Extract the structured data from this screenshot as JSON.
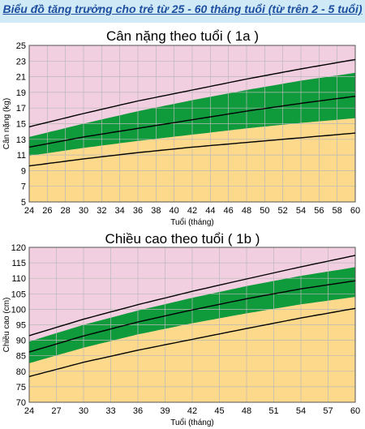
{
  "header": {
    "title": "Biểu đồ tăng trưởng cho trẻ từ 25 - 60 tháng tuổi (từ trên 2 - 5 tuổi)"
  },
  "colors": {
    "pink": "#f2cfe0",
    "green": "#0f9a3c",
    "yellow": "#fdd98b",
    "grid": "#b8b8b8",
    "line": "#000000"
  },
  "chart_data": [
    {
      "type": "line",
      "title": "Cân nặng theo tuổi ( 1a )",
      "xlabel": "Tuổi (tháng)",
      "ylabel": "Cân nặng (kg)",
      "xlim": [
        24,
        60
      ],
      "ylim": [
        5,
        25
      ],
      "xticks": [
        24,
        26,
        28,
        30,
        32,
        34,
        36,
        38,
        40,
        42,
        44,
        46,
        48,
        50,
        52,
        54,
        56,
        58,
        60
      ],
      "yticks": [
        5,
        7,
        9,
        11,
        13,
        15,
        17,
        19,
        21,
        23,
        25
      ],
      "x": [
        24,
        30,
        36,
        42,
        48,
        54,
        60
      ],
      "series": [
        {
          "name": "",
          "role": "upper-line",
          "values": [
            14.6,
            16.3,
            17.9,
            19.3,
            20.7,
            22.0,
            23.2
          ]
        },
        {
          "name": "",
          "role": "green-top",
          "values": [
            13.3,
            15.0,
            16.6,
            18.0,
            19.3,
            20.5,
            21.5
          ]
        },
        {
          "name": "",
          "role": "median",
          "values": [
            12.0,
            13.3,
            14.4,
            15.5,
            16.6,
            17.6,
            18.5
          ]
        },
        {
          "name": "",
          "role": "green-bottom",
          "values": [
            10.9,
            11.9,
            12.8,
            13.6,
            14.4,
            15.1,
            15.7
          ]
        },
        {
          "name": "",
          "role": "lower-line",
          "values": [
            9.6,
            10.5,
            11.3,
            12.0,
            12.6,
            13.2,
            13.8
          ]
        }
      ]
    },
    {
      "type": "line",
      "title": "Chiều cao theo tuổi ( 1b )",
      "xlabel": "Tuổi (tháng)",
      "ylabel": "Chiều cao (cm)",
      "xlim": [
        24,
        60
      ],
      "ylim": [
        70,
        120
      ],
      "xticks": [
        24,
        27,
        30,
        33,
        36,
        39,
        42,
        45,
        48,
        51,
        54,
        57,
        60
      ],
      "yticks": [
        70,
        75,
        80,
        85,
        90,
        95,
        100,
        105,
        110,
        115,
        120
      ],
      "x": [
        24,
        30,
        36,
        42,
        48,
        54,
        60
      ],
      "series": [
        {
          "name": "",
          "role": "upper-line",
          "values": [
            91.5,
            96.8,
            101.5,
            105.8,
            109.8,
            113.7,
            117.4
          ]
        },
        {
          "name": "",
          "role": "green-top",
          "values": [
            89.6,
            95.0,
            99.6,
            103.7,
            107.5,
            110.8,
            113.6
          ]
        },
        {
          "name": "",
          "role": "median",
          "values": [
            86.2,
            91.4,
            95.9,
            99.8,
            103.4,
            106.6,
            109.2
          ]
        },
        {
          "name": "",
          "role": "green-bottom",
          "values": [
            82.6,
            87.6,
            91.9,
            95.5,
            98.7,
            101.6,
            104.0
          ]
        },
        {
          "name": "",
          "role": "lower-line",
          "values": [
            78.3,
            82.9,
            86.8,
            90.3,
            93.8,
            97.2,
            100.3
          ]
        }
      ]
    }
  ]
}
